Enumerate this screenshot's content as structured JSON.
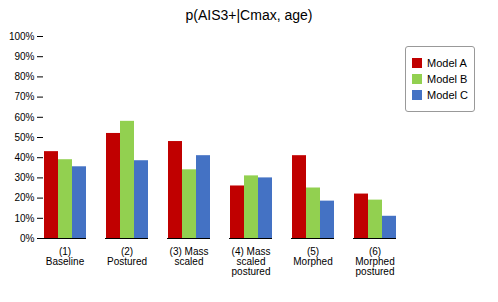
{
  "chart_data": {
    "type": "bar",
    "title": "p(AIS3+|Cmax, age)",
    "categories": [
      "(1)\nBaseline",
      "(2)\nPostured",
      "(3) Mass\nscaled",
      "(4) Mass\nscaled\npostured",
      "(5)\nMorphed",
      "(6)\nMorphed\npostured"
    ],
    "series": [
      {
        "name": "Model A",
        "color": "#C00000",
        "values": [
          0.43,
          0.52,
          0.48,
          0.26,
          0.41,
          0.22
        ]
      },
      {
        "name": "Model B",
        "color": "#92D050",
        "values": [
          0.39,
          0.58,
          0.34,
          0.31,
          0.25,
          0.19
        ]
      },
      {
        "name": "Model C",
        "color": "#4472C4",
        "values": [
          0.355,
          0.385,
          0.41,
          0.3,
          0.185,
          0.11
        ]
      }
    ],
    "ylim": [
      0,
      1.0
    ],
    "yticks": [
      {
        "value": 0.0,
        "label": "0%"
      },
      {
        "value": 0.1,
        "label": "10%"
      },
      {
        "value": 0.2,
        "label": "20%"
      },
      {
        "value": 0.3,
        "label": "30%"
      },
      {
        "value": 0.4,
        "label": "40%"
      },
      {
        "value": 0.5,
        "label": "50%"
      },
      {
        "value": 0.6,
        "label": "60%"
      },
      {
        "value": 0.7,
        "label": "70%"
      },
      {
        "value": 0.8,
        "label": "80%"
      },
      {
        "value": 0.9,
        "label": "90%"
      },
      {
        "value": 1.0,
        "label": "100%"
      }
    ],
    "grid": false,
    "legend": "right"
  }
}
